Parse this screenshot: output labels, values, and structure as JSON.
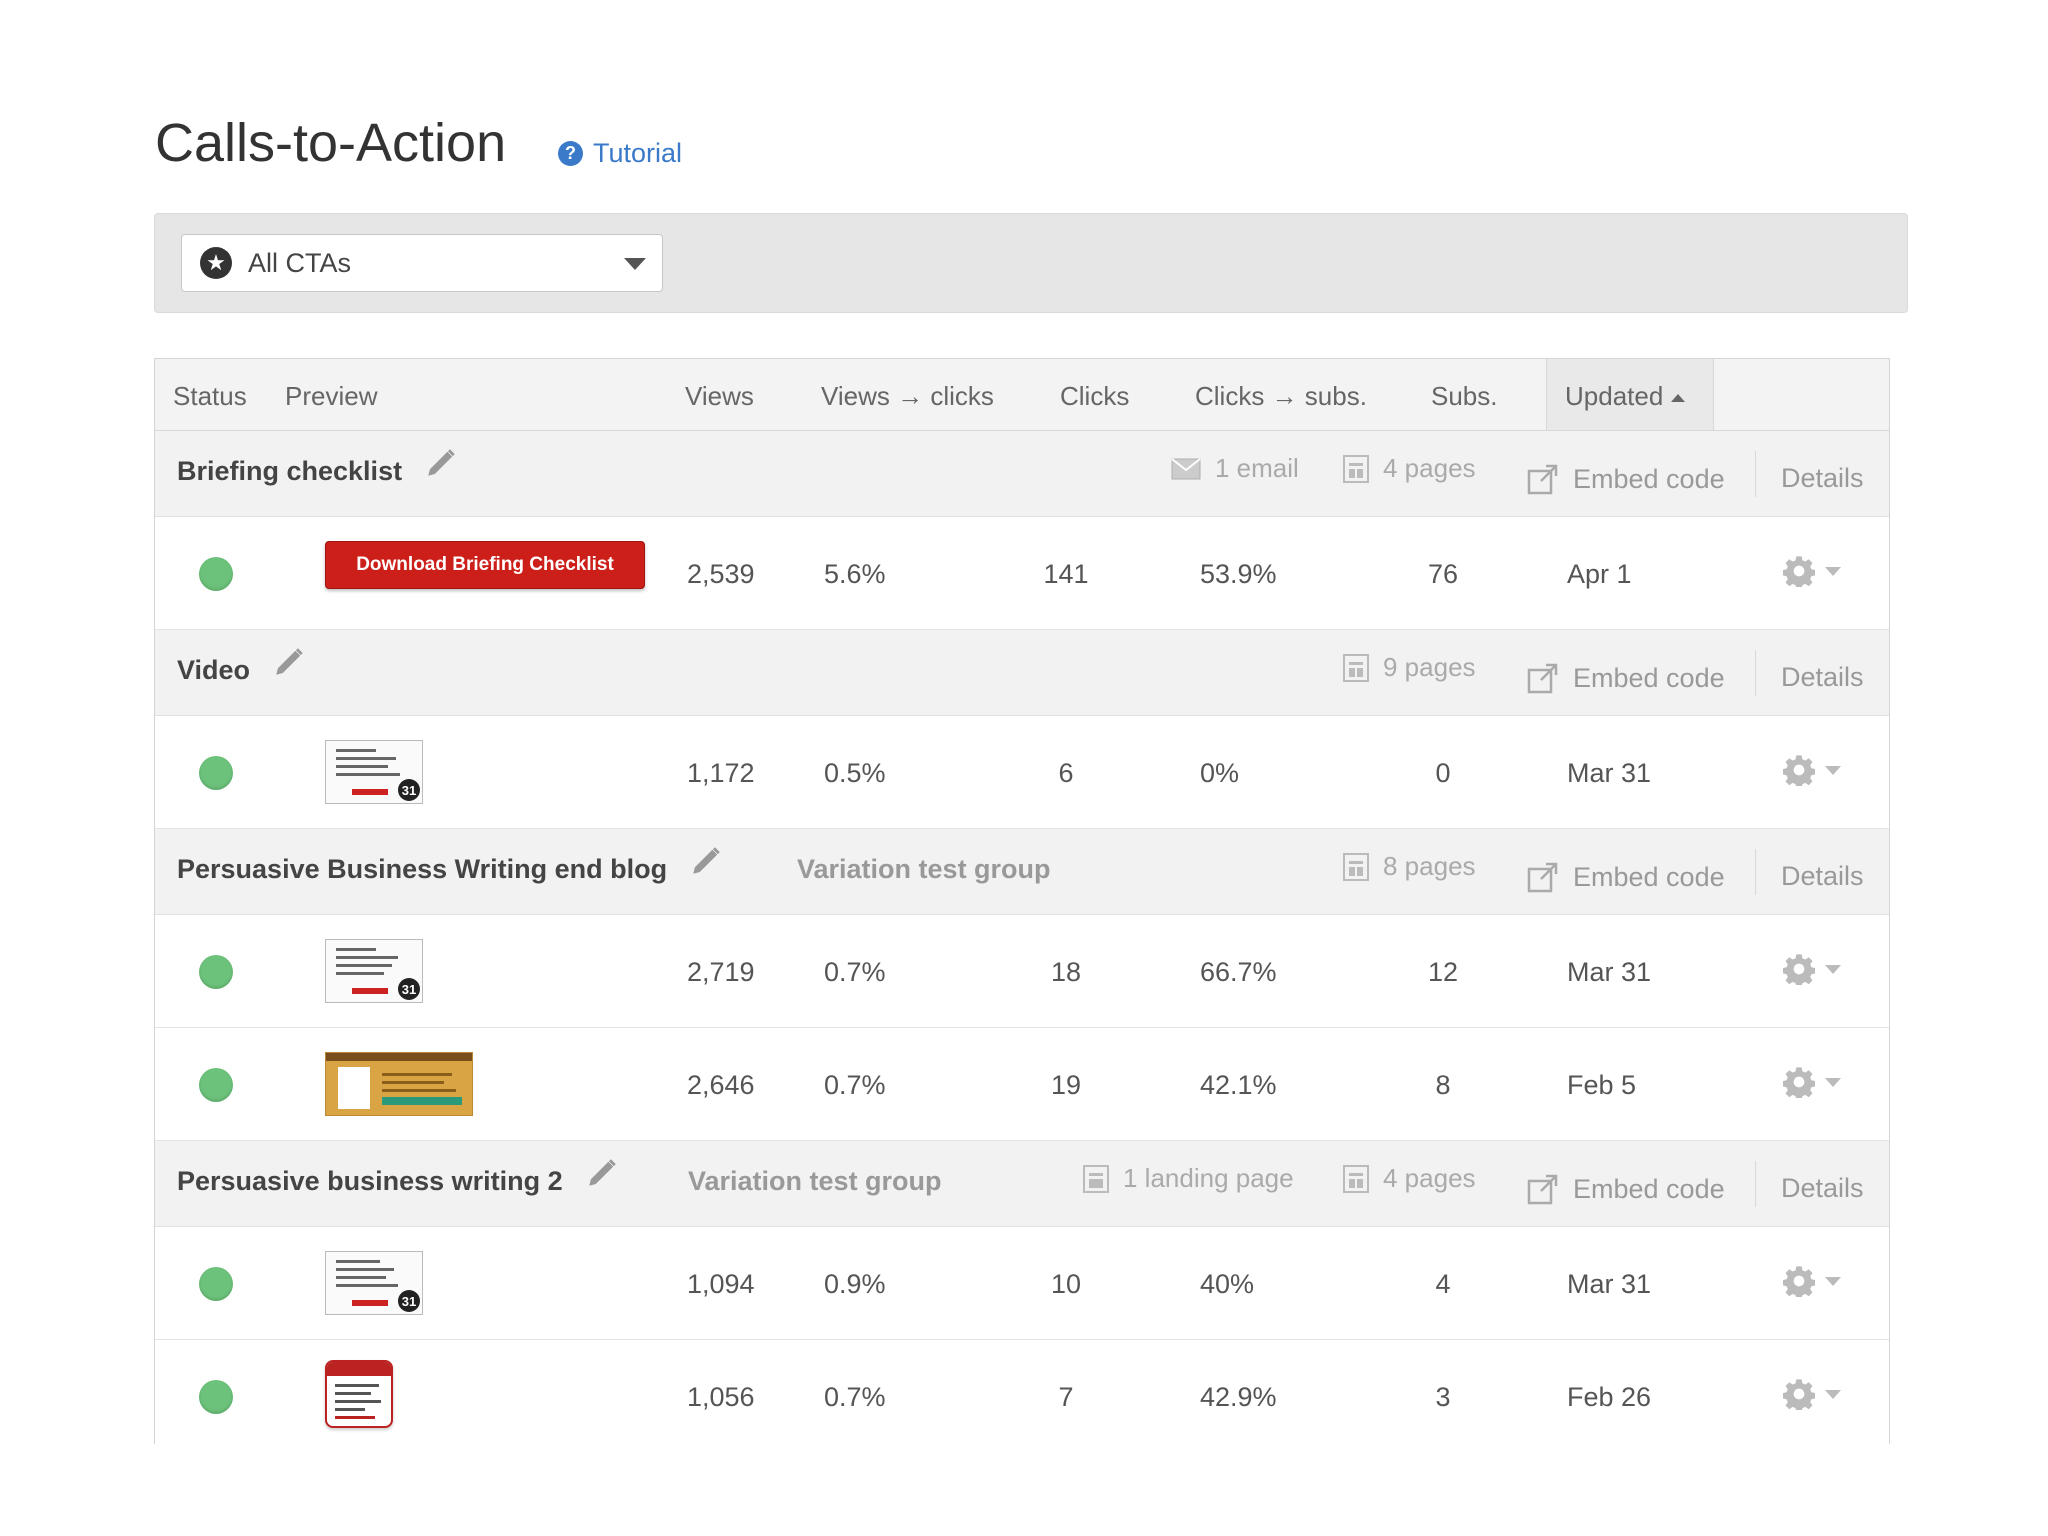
{
  "header": {
    "title": "Calls-to-Action",
    "tutorial_label": "Tutorial"
  },
  "filter": {
    "selected": "All CTAs"
  },
  "columns": [
    "Status",
    "Preview",
    "Views",
    "Views → clicks",
    "Clicks",
    "Clicks → subs.",
    "Subs.",
    "Updated"
  ],
  "actions": {
    "embed_label": "Embed code",
    "details_label": "Details"
  },
  "groups": [
    {
      "name": "Briefing checklist",
      "variation": "",
      "meta": [
        "1 email",
        "4 pages"
      ],
      "rows": [
        {
          "preview": "Download Briefing Checklist",
          "views": "2,539",
          "views_clicks": "5.6%",
          "clicks": "141",
          "clicks_subs": "53.9%",
          "subs": "76",
          "updated": "Apr 1"
        }
      ]
    },
    {
      "name": "Video",
      "variation": "",
      "meta": [
        "9 pages"
      ],
      "rows": [
        {
          "preview": "",
          "views": "1,172",
          "views_clicks": "0.5%",
          "clicks": "6",
          "clicks_subs": "0%",
          "subs": "0",
          "updated": "Mar 31"
        }
      ]
    },
    {
      "name": "Persuasive Business Writing end blog",
      "variation": "Variation test group",
      "meta": [
        "8 pages"
      ],
      "rows": [
        {
          "preview": "",
          "views": "2,719",
          "views_clicks": "0.7%",
          "clicks": "18",
          "clicks_subs": "66.7%",
          "subs": "12",
          "updated": "Mar 31"
        },
        {
          "preview": "",
          "views": "2,646",
          "views_clicks": "0.7%",
          "clicks": "19",
          "clicks_subs": "42.1%",
          "subs": "8",
          "updated": "Feb 5"
        }
      ]
    },
    {
      "name": "Persuasive business writing 2",
      "variation": "Variation test group",
      "meta": [
        "1 landing page",
        "4 pages"
      ],
      "rows": [
        {
          "preview": "",
          "views": "1,094",
          "views_clicks": "0.9%",
          "clicks": "10",
          "clicks_subs": "40%",
          "subs": "4",
          "updated": "Mar 31"
        },
        {
          "preview": "",
          "views": "1,056",
          "views_clicks": "0.7%",
          "clicks": "7",
          "clicks_subs": "42.9%",
          "subs": "3",
          "updated": "Feb 26"
        }
      ]
    }
  ],
  "colors": {
    "status_active": "#6cc27a",
    "link": "#3a7ac8",
    "cta_red": "#cc1f1a"
  }
}
